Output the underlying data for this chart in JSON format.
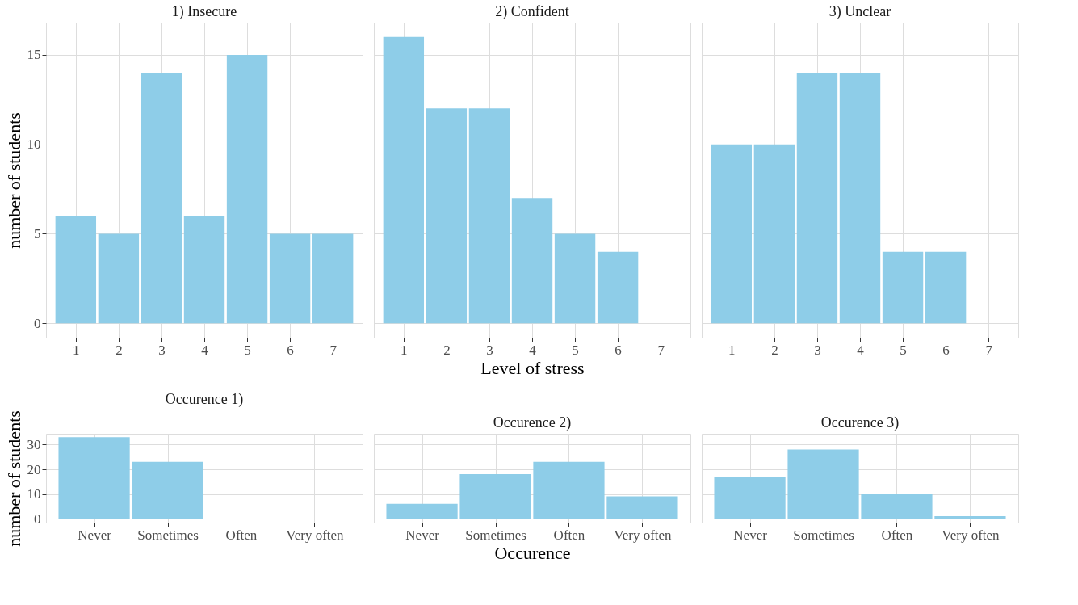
{
  "chart_data": [
    {
      "type": "bar",
      "title": "1) Insecure",
      "ylabel": "number of students",
      "categories": [
        "1",
        "2",
        "3",
        "4",
        "5",
        "6",
        "7"
      ],
      "values": [
        6,
        5,
        14,
        6,
        15,
        5,
        5
      ],
      "color": "#8ecde8",
      "ylim": [
        -0.8,
        16.8
      ],
      "yticks": [
        0,
        5,
        10,
        15
      ],
      "grid": true
    },
    {
      "type": "bar",
      "title": "2) Confident",
      "xlabel": "Level of stress",
      "categories": [
        "1",
        "2",
        "3",
        "4",
        "5",
        "6",
        "7"
      ],
      "values": [
        16,
        12,
        12,
        7,
        5,
        4,
        0
      ],
      "color": "#8ecde8",
      "ylim": [
        -0.8,
        16.8
      ],
      "yticks": [
        0,
        5,
        10,
        15
      ],
      "grid": true,
      "tick_labels": "x"
    },
    {
      "type": "bar",
      "title": "3) Unclear",
      "categories": [
        "1",
        "2",
        "3",
        "4",
        "5",
        "6",
        "7"
      ],
      "values": [
        10,
        10,
        14,
        14,
        4,
        4,
        0
      ],
      "color": "#8ecde8",
      "ylim": [
        -0.8,
        16.8
      ],
      "yticks": [
        0,
        5,
        10,
        15
      ],
      "grid": true,
      "tick_labels": "x"
    },
    {
      "type": "bar",
      "title": "Occurence 1)",
      "ylabel": "number of students",
      "categories": [
        "Never",
        "Sometimes",
        "Often",
        "Very often"
      ],
      "values": [
        33,
        23,
        0,
        0
      ],
      "color": "#8ecde8",
      "ylim": [
        -1.6,
        34.4
      ],
      "yticks": [
        0,
        10,
        20,
        30
      ],
      "grid": true
    },
    {
      "type": "bar",
      "title": "Occurence 2)",
      "xlabel": "Occurence",
      "categories": [
        "Never",
        "Sometimes",
        "Often",
        "Very often"
      ],
      "values": [
        6,
        18,
        23,
        9
      ],
      "color": "#8ecde8",
      "ylim": [
        -1.6,
        34.4
      ],
      "yticks": [
        0,
        10,
        20,
        30
      ],
      "grid": true,
      "tick_labels": "x"
    },
    {
      "type": "bar",
      "title": "Occurence 3)",
      "categories": [
        "Never",
        "Sometimes",
        "Often",
        "Very often"
      ],
      "values": [
        17,
        28,
        10,
        1
      ],
      "color": "#8ecde8",
      "ylim": [
        -1.6,
        34.4
      ],
      "yticks": [
        0,
        10,
        20,
        30
      ],
      "grid": true,
      "tick_labels": "x"
    }
  ]
}
